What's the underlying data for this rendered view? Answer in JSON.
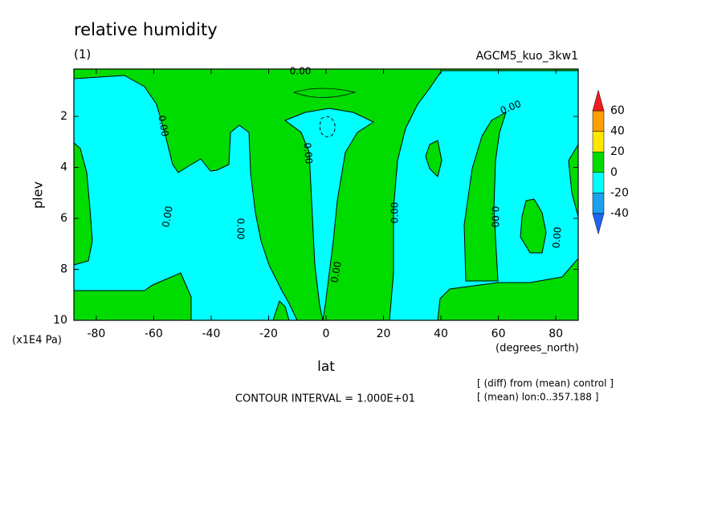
{
  "chart_data": {
    "type": "contour",
    "title": "relative humidity",
    "subtitle": "(1)",
    "run_name": "AGCM5_kuo_3kw1",
    "xlabel": "lat",
    "xunit": "(degrees_north)",
    "ylabel": "plev",
    "yunit": "(x1E4 Pa)",
    "xlim": [
      -87.8,
      87.8
    ],
    "xticks": [
      -80,
      -60,
      -40,
      -20,
      0,
      20,
      40,
      60,
      80
    ],
    "ylim": [
      10,
      0.14
    ],
    "yticks": [
      2,
      4,
      6,
      8,
      10
    ],
    "contour_label": "0.00",
    "contour_interval": "CONTOUR INTERVAL = 1.000E+01",
    "notes": [
      "[ (diff) from (mean) control ]",
      "[ (mean) lon:0..357.188 ]"
    ],
    "colorbar": {
      "levels": [
        -40,
        -20,
        0,
        20,
        40,
        60
      ],
      "colors": [
        "#1e64f0",
        "#1ea0f0",
        "#00ffff",
        "#00dc00",
        "#ffe600",
        "#ffa000",
        "#f01e1e"
      ]
    }
  }
}
